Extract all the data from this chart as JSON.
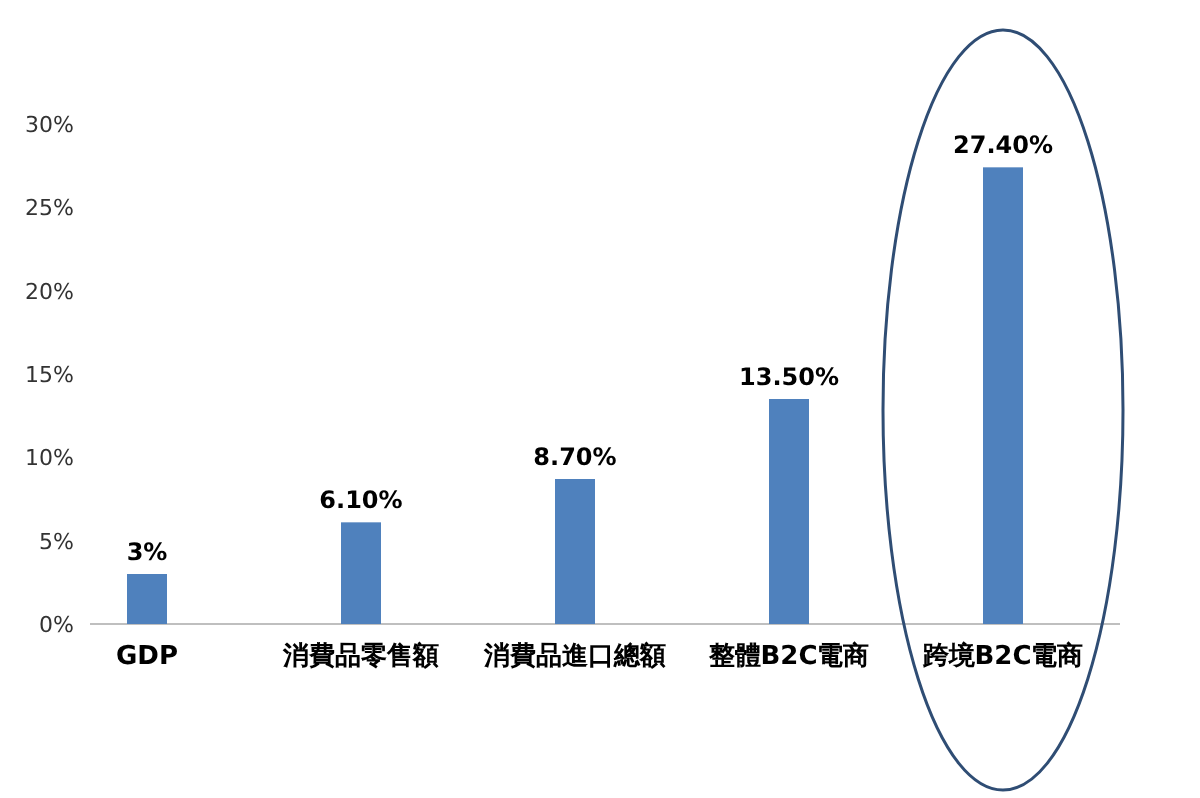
{
  "chart_data": {
    "type": "bar",
    "categories": [
      "GDP",
      "消費品零售額",
      "消費品進口總額",
      "整體B2C電商",
      "跨境B2C電商"
    ],
    "values": [
      3,
      6.1,
      8.7,
      13.5,
      27.4
    ],
    "value_labels": [
      "3%",
      "6.10%",
      "8.70%",
      "13.50%",
      "27.40%"
    ],
    "color": "#4f81bd",
    "ylim": [
      0,
      30
    ],
    "yticks": [
      {
        "value": 0,
        "label": "0%"
      },
      {
        "value": 5,
        "label": "5%"
      },
      {
        "value": 10,
        "label": "10%"
      },
      {
        "value": 15,
        "label": "15%"
      },
      {
        "value": 20,
        "label": "20%"
      },
      {
        "value": 25,
        "label": "25%"
      },
      {
        "value": 30,
        "label": "30%"
      }
    ],
    "grid": false
  }
}
